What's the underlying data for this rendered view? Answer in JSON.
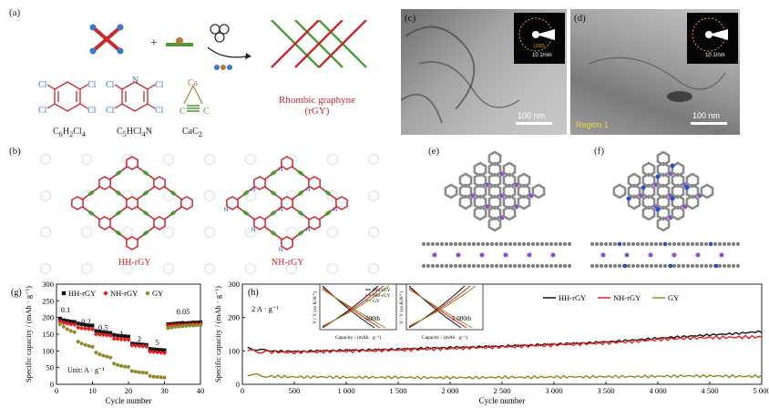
{
  "panels": {
    "a": {
      "label": "(a)",
      "plus": "+",
      "precursors": [
        {
          "name": "C6H2Cl4",
          "main": "C",
          "s1": "6",
          "h": "H",
          "s2": "2",
          "cl": "Cl",
          "s3": "4"
        },
        {
          "name": "C5HCl4N",
          "main": "C",
          "s1": "5",
          "h": "HCl",
          "s2": "4",
          "cl": "N",
          "s3": ""
        },
        {
          "name": "CaC2",
          "main": "CaC",
          "s1": "2"
        }
      ],
      "ring_atoms": {
        "cl": "Cl",
        "n": "N",
        "ca": "Ca",
        "c": "C"
      },
      "product": [
        "Rhombic graphyne",
        "(rGY)"
      ],
      "colors": {
        "red": "#c8282e",
        "green": "#4e9a3a",
        "blue": "#3d78c2"
      }
    },
    "b": {
      "label": "(b)",
      "left_title": "HH-rGY",
      "right_title": "NH-rGY",
      "atom_n": "N"
    },
    "c": {
      "label": "(c)",
      "saed": "10 1/nm",
      "ring": "(100)",
      "scale": "100 nm"
    },
    "d": {
      "label": "(d)",
      "saed": "10 1/nm",
      "region": "Region 1",
      "scale": "100 nm"
    },
    "e": {
      "label": "(e)"
    },
    "f": {
      "label": "(f)"
    },
    "g": {
      "label": "(g)",
      "unit_note": "Unit: A · g⁻¹"
    },
    "h": {
      "label": "(h)",
      "current": "2 A · g⁻¹",
      "inset1": {
        "tag": "500th",
        "legend": [
          "HH-rGY",
          "NH-rGY",
          "GY"
        ]
      },
      "inset2": {
        "tag": "5 000th"
      },
      "inset_ylabel": "V / V (vs K/K⁺)",
      "inset_xlabel": "Capacity / (mAh · g⁻¹)"
    }
  },
  "chart_data": [
    {
      "type": "scatter",
      "panel": "g",
      "xlabel": "Cycle number",
      "ylabel": "Specific capacity / (mAh · g⁻¹)",
      "xlim": [
        0,
        40
      ],
      "ylim": [
        0,
        300
      ],
      "xticks": [
        0,
        10,
        20,
        30,
        40
      ],
      "yticks": [
        0,
        50,
        100,
        150,
        200,
        250,
        300
      ],
      "legend": "top",
      "grid": false,
      "rate_labels": [
        {
          "text": "0.1",
          "x": 2.5,
          "y": 216
        },
        {
          "text": "0.2",
          "x": 8.2,
          "y": 180
        },
        {
          "text": "0.5",
          "x": 13.0,
          "y": 162
        },
        {
          "text": "1",
          "x": 18.0,
          "y": 145
        },
        {
          "text": "2",
          "x": 23.0,
          "y": 128
        },
        {
          "text": "5",
          "x": 28.0,
          "y": 117
        },
        {
          "text": "0.05",
          "x": 35.2,
          "y": 210
        }
      ],
      "series": [
        {
          "name": "HH-rGY",
          "color": "#111111",
          "marker": "square",
          "x": [
            1,
            2,
            3,
            4,
            5,
            6,
            7,
            8,
            9,
            10,
            11,
            12,
            13,
            14,
            15,
            16,
            17,
            18,
            19,
            20,
            21,
            22,
            23,
            24,
            25,
            26,
            27,
            28,
            29,
            30,
            31,
            32,
            33,
            34,
            35,
            36,
            37,
            38,
            39,
            40
          ],
          "y": [
            197,
            192,
            190,
            188,
            187,
            182,
            180,
            178,
            176,
            176,
            160,
            158,
            156,
            155,
            154,
            148,
            146,
            145,
            144,
            143,
            122,
            121,
            120,
            119,
            118,
            106,
            105,
            104,
            103,
            102,
            180,
            181,
            182,
            183,
            184,
            183,
            184,
            185,
            185,
            186
          ]
        },
        {
          "name": "NH-rGY",
          "color": "#e02020",
          "marker": "diamond",
          "x": [
            1,
            2,
            3,
            4,
            5,
            6,
            7,
            8,
            9,
            10,
            11,
            12,
            13,
            14,
            15,
            16,
            17,
            18,
            19,
            20,
            21,
            22,
            23,
            24,
            25,
            26,
            27,
            28,
            29,
            30,
            31,
            32,
            33,
            34,
            35,
            36,
            37,
            38,
            39,
            40
          ],
          "y": [
            188,
            184,
            182,
            180,
            179,
            170,
            168,
            167,
            166,
            165,
            150,
            149,
            148,
            147,
            146,
            137,
            136,
            135,
            134,
            133,
            117,
            116,
            115,
            114,
            113,
            98,
            97,
            96,
            95,
            94,
            176,
            177,
            177,
            178,
            178,
            179,
            179,
            180,
            180,
            181
          ]
        },
        {
          "name": "GY",
          "color": "#8a8a2a",
          "marker": "circle",
          "x": [
            1,
            2,
            3,
            4,
            5,
            6,
            7,
            8,
            9,
            10,
            11,
            12,
            13,
            14,
            15,
            16,
            17,
            18,
            19,
            20,
            21,
            22,
            23,
            24,
            25,
            26,
            27,
            28,
            29,
            30,
            31,
            32,
            33,
            34,
            35,
            36,
            37,
            38,
            39,
            40
          ],
          "y": [
            180,
            172,
            165,
            160,
            156,
            128,
            122,
            118,
            115,
            112,
            95,
            90,
            86,
            83,
            80,
            62,
            58,
            55,
            53,
            52,
            40,
            38,
            36,
            35,
            34,
            25,
            23,
            22,
            21,
            20,
            168,
            170,
            172,
            173,
            174,
            175,
            176,
            176,
            177,
            177
          ]
        }
      ]
    },
    {
      "type": "line",
      "panel": "h",
      "xlabel": "Cycle number",
      "ylabel": "Specific capacity / (mAh · g⁻¹)",
      "xlim": [
        0,
        5000
      ],
      "ylim": [
        0,
        300
      ],
      "xticks": [
        0,
        500,
        1000,
        1500,
        2000,
        2500,
        3000,
        3500,
        4000,
        4500,
        5000
      ],
      "xtick_labels": [
        "0",
        "500",
        "1 000",
        "1 500",
        "2 000",
        "2 500",
        "3 000",
        "3 500",
        "4 000",
        "4 500",
        "5 000"
      ],
      "yticks": [
        0,
        100,
        200,
        300
      ],
      "legend": "top-right",
      "grid": false,
      "series": [
        {
          "name": "HH-rGY",
          "color": "#111111",
          "x": [
            50,
            250,
            500,
            750,
            1000,
            1250,
            1500,
            1750,
            2000,
            2250,
            2500,
            2750,
            3000,
            3250,
            3500,
            3750,
            4000,
            4250,
            4500,
            4750,
            5000
          ],
          "y": [
            108,
            100,
            98,
            100,
            102,
            103,
            105,
            108,
            110,
            112,
            114,
            117,
            120,
            123,
            127,
            132,
            138,
            143,
            148,
            152,
            158
          ]
        },
        {
          "name": "NH-rGY",
          "color": "#e02020",
          "x": [
            50,
            250,
            500,
            750,
            1000,
            1250,
            1500,
            1750,
            2000,
            2250,
            2500,
            2750,
            3000,
            3250,
            3500,
            3750,
            4000,
            4250,
            4500,
            4750,
            5000
          ],
          "y": [
            100,
            97,
            96,
            98,
            100,
            101,
            103,
            105,
            107,
            110,
            112,
            115,
            118,
            121,
            124,
            128,
            134,
            138,
            140,
            141,
            142
          ]
        },
        {
          "name": "GY",
          "color": "#8a8a2a",
          "x": [
            50,
            250,
            500,
            750,
            1000,
            1250,
            1500,
            1750,
            2000,
            2250,
            2500,
            2750,
            3000,
            3250,
            3500,
            3750,
            4000,
            4250,
            4500,
            4750,
            5000
          ],
          "y": [
            30,
            24,
            22,
            22,
            21,
            21,
            21,
            20,
            20,
            20,
            21,
            21,
            22,
            22,
            23,
            23,
            24,
            25,
            25,
            24,
            24
          ]
        }
      ]
    }
  ]
}
